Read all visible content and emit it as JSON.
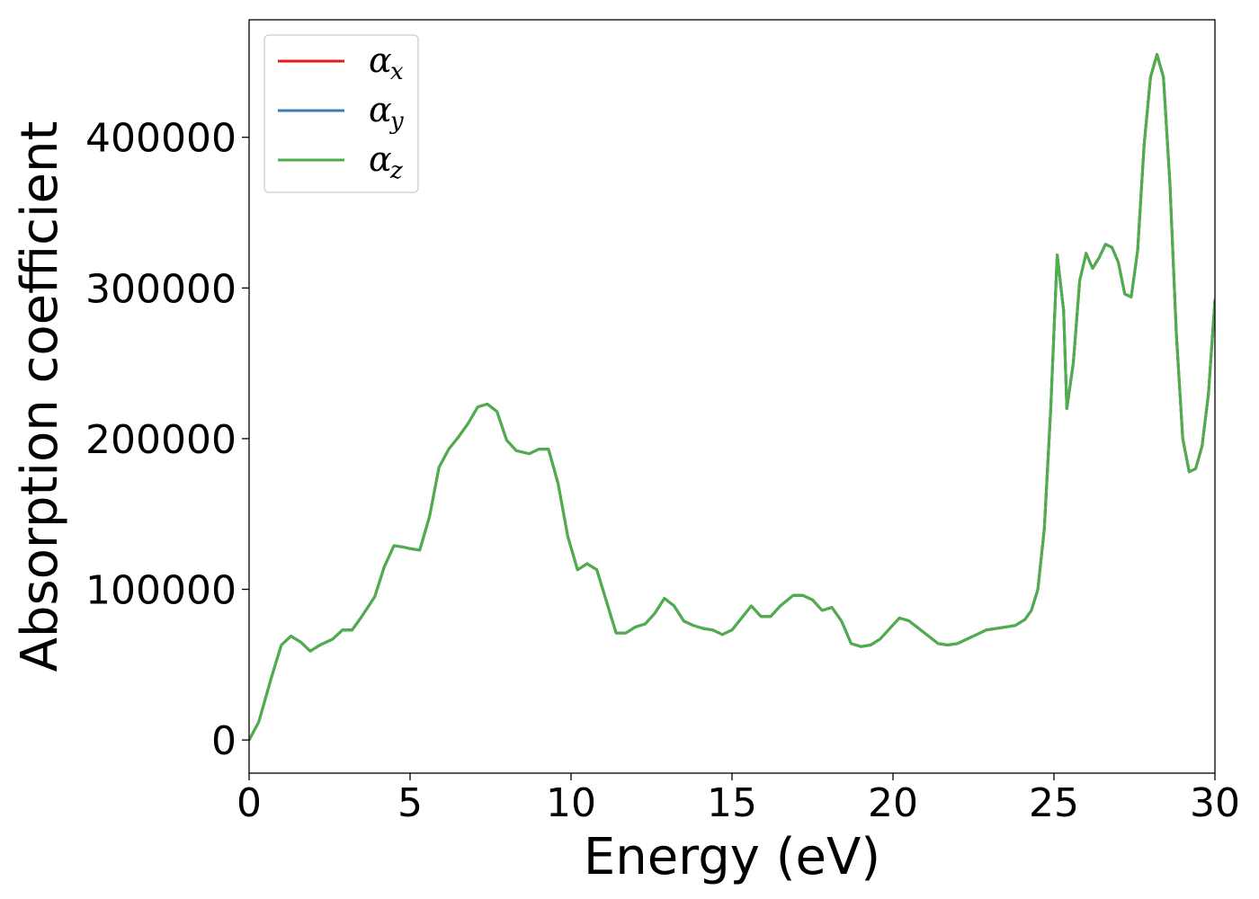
{
  "chart_data": {
    "type": "line",
    "title": "",
    "xlabel": "Energy (eV)",
    "ylabel": "Absorption coefficient",
    "xlim": [
      0,
      30
    ],
    "ylim": [
      -22000,
      478000
    ],
    "xticks": [
      0,
      5,
      10,
      15,
      20,
      25,
      30
    ],
    "xtick_labels": [
      "0",
      "5",
      "10",
      "15",
      "20",
      "25",
      "30"
    ],
    "yticks": [
      0,
      100000,
      200000,
      300000,
      400000
    ],
    "ytick_labels": [
      "0",
      "100000",
      "200000",
      "300000",
      "400000"
    ],
    "grid": false,
    "legend_position": "top-left",
    "x": [
      0,
      0.3,
      0.7,
      1.0,
      1.3,
      1.6,
      1.9,
      2.2,
      2.6,
      2.9,
      3.2,
      3.5,
      3.9,
      4.2,
      4.5,
      4.8,
      5.0,
      5.3,
      5.6,
      5.9,
      6.2,
      6.5,
      6.8,
      7.1,
      7.4,
      7.7,
      8.0,
      8.3,
      8.7,
      9.0,
      9.3,
      9.6,
      9.9,
      10.2,
      10.5,
      10.8,
      11.1,
      11.4,
      11.7,
      12.0,
      12.3,
      12.6,
      12.9,
      13.2,
      13.5,
      13.8,
      14.1,
      14.4,
      14.7,
      15.0,
      15.3,
      15.6,
      15.9,
      16.2,
      16.5,
      16.9,
      17.2,
      17.5,
      17.8,
      18.1,
      18.4,
      18.7,
      19.0,
      19.3,
      19.6,
      19.9,
      20.2,
      20.5,
      20.8,
      21.1,
      21.4,
      21.7,
      22.0,
      22.3,
      22.6,
      22.9,
      23.2,
      23.5,
      23.8,
      24.1,
      24.3,
      24.5,
      24.7,
      24.9,
      25.1,
      25.3,
      25.4,
      25.6,
      25.8,
      26.0,
      26.2,
      26.4,
      26.6,
      26.8,
      27.0,
      27.2,
      27.4,
      27.6,
      27.8,
      28.0,
      28.2,
      28.4,
      28.6,
      28.8,
      29.0,
      29.2,
      29.4,
      29.6,
      29.8,
      30.0
    ],
    "series": [
      {
        "name": "αx",
        "color": "#e41a1c",
        "y": [
          0,
          12000,
          42000,
          63000,
          69000,
          65000,
          59000,
          63000,
          67000,
          73000,
          73000,
          82000,
          95000,
          115000,
          129000,
          128000,
          127000,
          126000,
          148000,
          181000,
          193000,
          201000,
          210000,
          221000,
          223000,
          218000,
          199000,
          192000,
          190000,
          193000,
          193000,
          170000,
          135000,
          113000,
          117000,
          113000,
          92000,
          71000,
          71000,
          75000,
          77000,
          84000,
          94000,
          89000,
          79000,
          76000,
          74000,
          73000,
          70000,
          73000,
          81000,
          89000,
          82000,
          82000,
          89000,
          96000,
          96000,
          93000,
          86000,
          88000,
          79000,
          64000,
          62000,
          63000,
          67000,
          74000,
          81000,
          79000,
          74000,
          69000,
          64000,
          63000,
          64000,
          67000,
          70000,
          73000,
          74000,
          75000,
          76000,
          80000,
          86000,
          100000,
          140000,
          220000,
          322000,
          285000,
          220000,
          250000,
          305000,
          323000,
          313000,
          320000,
          329000,
          327000,
          317000,
          296000,
          294000,
          325000,
          395000,
          440000,
          455000,
          440000,
          370000,
          270000,
          200000,
          178000,
          180000,
          195000,
          230000,
          292000
        ]
      },
      {
        "name": "αy",
        "color": "#377eb8",
        "y": [
          0,
          12000,
          42000,
          63000,
          69000,
          65000,
          59000,
          63000,
          67000,
          73000,
          73000,
          82000,
          95000,
          115000,
          129000,
          128000,
          127000,
          126000,
          148000,
          181000,
          193000,
          201000,
          210000,
          221000,
          223000,
          218000,
          199000,
          192000,
          190000,
          193000,
          193000,
          170000,
          135000,
          113000,
          117000,
          113000,
          92000,
          71000,
          71000,
          75000,
          77000,
          84000,
          94000,
          89000,
          79000,
          76000,
          74000,
          73000,
          70000,
          73000,
          81000,
          89000,
          82000,
          82000,
          89000,
          96000,
          96000,
          93000,
          86000,
          88000,
          79000,
          64000,
          62000,
          63000,
          67000,
          74000,
          81000,
          79000,
          74000,
          69000,
          64000,
          63000,
          64000,
          67000,
          70000,
          73000,
          74000,
          75000,
          76000,
          80000,
          86000,
          100000,
          140000,
          220000,
          322000,
          285000,
          220000,
          250000,
          305000,
          323000,
          313000,
          320000,
          329000,
          327000,
          317000,
          296000,
          294000,
          325000,
          395000,
          440000,
          455000,
          440000,
          370000,
          270000,
          200000,
          178000,
          180000,
          195000,
          230000,
          292000
        ]
      },
      {
        "name": "αz",
        "color": "#4daf4a",
        "y": [
          0,
          12000,
          42000,
          63000,
          69000,
          65000,
          59000,
          63000,
          67000,
          73000,
          73000,
          82000,
          95000,
          115000,
          129000,
          128000,
          127000,
          126000,
          148000,
          181000,
          193000,
          201000,
          210000,
          221000,
          223000,
          218000,
          199000,
          192000,
          190000,
          193000,
          193000,
          170000,
          135000,
          113000,
          117000,
          113000,
          92000,
          71000,
          71000,
          75000,
          77000,
          84000,
          94000,
          89000,
          79000,
          76000,
          74000,
          73000,
          70000,
          73000,
          81000,
          89000,
          82000,
          82000,
          89000,
          96000,
          96000,
          93000,
          86000,
          88000,
          79000,
          64000,
          62000,
          63000,
          67000,
          74000,
          81000,
          79000,
          74000,
          69000,
          64000,
          63000,
          64000,
          67000,
          70000,
          73000,
          74000,
          75000,
          76000,
          80000,
          86000,
          100000,
          140000,
          220000,
          322000,
          285000,
          220000,
          250000,
          305000,
          323000,
          313000,
          320000,
          329000,
          327000,
          317000,
          296000,
          294000,
          325000,
          395000,
          440000,
          455000,
          440000,
          370000,
          270000,
          200000,
          178000,
          180000,
          195000,
          230000,
          292000
        ]
      }
    ],
    "legend": [
      {
        "symbol": "α",
        "subscript": "x",
        "color": "#e41a1c"
      },
      {
        "symbol": "α",
        "subscript": "y",
        "color": "#377eb8"
      },
      {
        "symbol": "α",
        "subscript": "z",
        "color": "#4daf4a"
      }
    ]
  }
}
